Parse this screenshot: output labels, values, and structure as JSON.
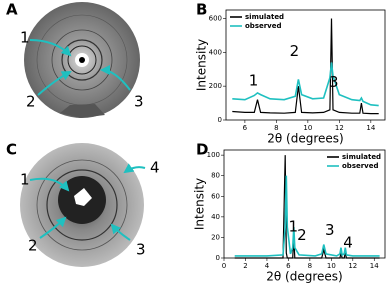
{
  "images": [
    {
      "label": "A",
      "annotations": [
        "1",
        "2",
        "3"
      ]
    },
    {
      "label": "C",
      "annotations": [
        "1",
        "2",
        "3",
        "4"
      ]
    }
  ],
  "chart_data": [
    {
      "type": "line",
      "panel_label": "B",
      "xlabel": "2θ (degrees)",
      "ylabel": "Intensity",
      "x": [
        5.2,
        6.0,
        6.6,
        6.8,
        7.0,
        7.6,
        8.5,
        9.2,
        9.4,
        9.6,
        10.3,
        11.0,
        11.4,
        11.5,
        11.6,
        12.0,
        12.8,
        13.3,
        13.4,
        13.5,
        14.0,
        14.5
      ],
      "series": [
        {
          "name": "simulated",
          "color": "#000000",
          "values": [
            50,
            45,
            45,
            120,
            45,
            42,
            40,
            45,
            200,
            45,
            42,
            45,
            60,
            600,
            60,
            45,
            40,
            40,
            100,
            40,
            38,
            38
          ]
        },
        {
          "name": "observed",
          "color": "#1fc0c0",
          "values": [
            125,
            120,
            145,
            160,
            150,
            125,
            120,
            140,
            240,
            150,
            125,
            130,
            250,
            340,
            260,
            150,
            120,
            115,
            130,
            110,
            90,
            85
          ]
        }
      ],
      "annotations": [
        "1",
        "2",
        "3"
      ],
      "xlim": [
        4.8,
        14.9
      ],
      "xticks": [
        6,
        8,
        10,
        12,
        14
      ],
      "ylim": [
        0,
        650
      ],
      "yticks": [
        0,
        200,
        400,
        600
      ],
      "legend": "upper-left"
    },
    {
      "type": "line",
      "panel_label": "D",
      "xlabel": "2θ (degrees)",
      "ylabel": "Intensity",
      "x": [
        1,
        4,
        5.5,
        5.7,
        5.8,
        5.9,
        6.2,
        6.4,
        6.5,
        6.6,
        7.0,
        8.5,
        9.1,
        9.3,
        9.5,
        10.5,
        10.8,
        10.9,
        11.0,
        11.2,
        11.3,
        11.4,
        12,
        14.5
      ],
      "series": [
        {
          "name": "simulated",
          "color": "#000000",
          "values": [
            0,
            0,
            0,
            100,
            5,
            0,
            0,
            0,
            20,
            0,
            0,
            0,
            0,
            8,
            0,
            0,
            0,
            5,
            0,
            0,
            5,
            0,
            0,
            0
          ]
        },
        {
          "name": "observed",
          "color": "#1fc0c0",
          "values": [
            2,
            2,
            3,
            30,
            80,
            30,
            4,
            10,
            30,
            10,
            3,
            2,
            4,
            13,
            4,
            2,
            4,
            10,
            3,
            4,
            10,
            3,
            2,
            2
          ]
        }
      ],
      "annotations": [
        "1",
        "2",
        "3",
        "4"
      ],
      "xlim": [
        0,
        15
      ],
      "xticks": [
        0,
        2,
        4,
        6,
        8,
        10,
        12,
        14
      ],
      "ylim": [
        0,
        105
      ],
      "yticks": [
        0,
        20,
        40,
        60,
        80,
        100
      ],
      "legend": "upper-right"
    }
  ]
}
